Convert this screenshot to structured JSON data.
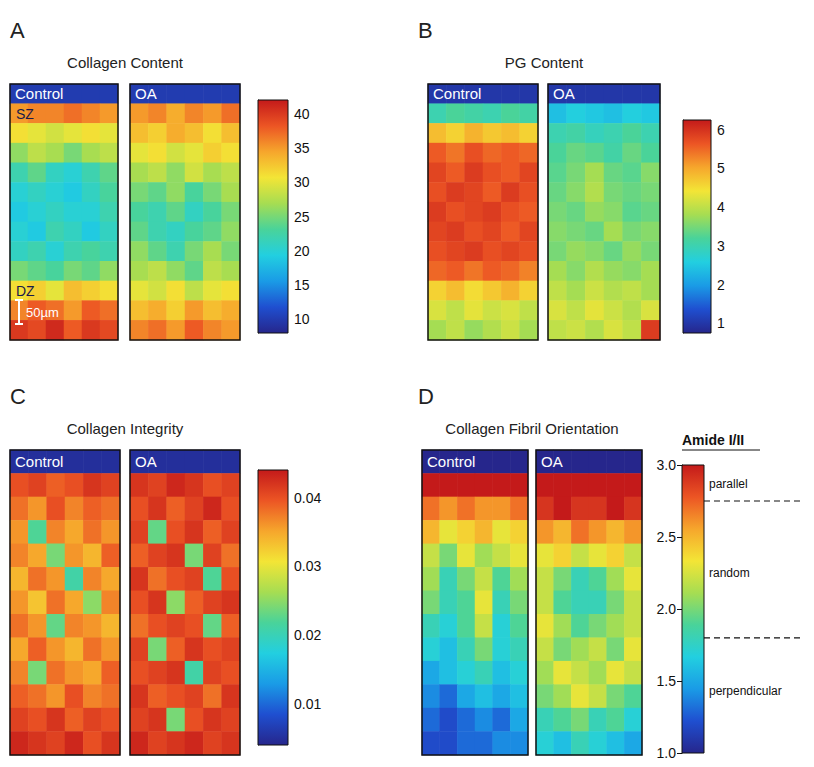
{
  "chart_data": [
    {
      "type": "heatmap",
      "panel": "A",
      "title": "Collagen Content",
      "colorbar": {
        "range": [
          8,
          42
        ],
        "ticks": [
          40,
          35,
          30,
          25,
          20,
          15,
          10
        ]
      },
      "images": [
        {
          "label": "Control",
          "annotations": [
            {
              "text": "SZ",
              "row": 1
            },
            {
              "text": "DZ",
              "row": 10
            }
          ],
          "scale_bar": "50µm",
          "cells": [
            [
              10,
              10,
              10,
              10,
              10,
              10
            ],
            [
              35,
              36,
              36,
              37,
              36,
              35
            ],
            [
              31,
              30,
              29,
              30,
              31,
              30
            ],
            [
              26,
              28,
              27,
              25,
              27,
              28
            ],
            [
              22,
              24,
              21,
              20,
              22,
              24
            ],
            [
              20,
              21,
              20,
              19,
              21,
              23
            ],
            [
              19,
              20,
              21,
              20,
              20,
              22
            ],
            [
              20,
              19,
              22,
              21,
              19,
              21
            ],
            [
              21,
              22,
              20,
              22,
              23,
              22
            ],
            [
              25,
              24,
              23,
              25,
              24,
              26
            ],
            [
              31,
              32,
              30,
              33,
              32,
              31
            ],
            [
              36,
              38,
              37,
              35,
              38,
              37
            ],
            [
              40,
              39,
              41,
              38,
              40,
              39
            ]
          ]
        },
        {
          "label": "OA",
          "cells": [
            [
              10,
              10,
              10,
              10,
              10,
              10
            ],
            [
              35,
              36,
              34,
              36,
              35,
              37
            ],
            [
              33,
              32,
              34,
              33,
              31,
              33
            ],
            [
              30,
              31,
              29,
              30,
              32,
              31
            ],
            [
              27,
              28,
              26,
              29,
              27,
              28
            ],
            [
              25,
              24,
              26,
              23,
              25,
              27
            ],
            [
              23,
              22,
              24,
              21,
              23,
              25
            ],
            [
              24,
              22,
              21,
              23,
              24,
              26
            ],
            [
              26,
              24,
              22,
              25,
              27,
              25
            ],
            [
              27,
              28,
              26,
              24,
              28,
              27
            ],
            [
              30,
              29,
              31,
              28,
              30,
              31
            ],
            [
              33,
              34,
              32,
              35,
              33,
              34
            ],
            [
              36,
              37,
              35,
              38,
              36,
              35
            ]
          ]
        }
      ]
    },
    {
      "type": "heatmap",
      "panel": "B",
      "title": "PG Content",
      "colorbar": {
        "range": [
          0.75,
          6.25
        ],
        "ticks": [
          6,
          5,
          4,
          3,
          2,
          1
        ]
      },
      "images": [
        {
          "label": "Control",
          "cells": [
            [
              1,
              1,
              1,
              1,
              1,
              1
            ],
            [
              3.0,
              3.2,
              3.1,
              3.0,
              3.2,
              3.1
            ],
            [
              4.8,
              4.6,
              4.9,
              4.7,
              4.8,
              4.6
            ],
            [
              5.6,
              5.4,
              5.7,
              5.5,
              5.6,
              5.5
            ],
            [
              5.8,
              5.6,
              5.9,
              5.7,
              5.6,
              5.8
            ],
            [
              5.7,
              5.9,
              5.8,
              5.6,
              5.9,
              5.7
            ],
            [
              5.9,
              5.7,
              5.8,
              5.9,
              5.7,
              5.6
            ],
            [
              5.8,
              5.9,
              5.7,
              5.8,
              5.6,
              5.8
            ],
            [
              5.7,
              5.8,
              5.9,
              5.7,
              5.8,
              5.7
            ],
            [
              5.5,
              5.6,
              5.4,
              5.6,
              5.5,
              5.3
            ],
            [
              4.6,
              4.8,
              4.5,
              4.7,
              4.9,
              4.6
            ],
            [
              4.2,
              4.0,
              4.3,
              4.1,
              4.2,
              4.0
            ],
            [
              3.8,
              4.0,
              3.7,
              3.9,
              4.1,
              3.8
            ]
          ]
        },
        {
          "label": "OA",
          "cells": [
            [
              1,
              1,
              1,
              1,
              1,
              1
            ],
            [
              2.4,
              2.6,
              2.5,
              2.4,
              2.6,
              2.5
            ],
            [
              3.0,
              3.1,
              2.9,
              3.0,
              3.2,
              3.0
            ],
            [
              3.2,
              3.4,
              3.3,
              3.1,
              3.4,
              3.2
            ],
            [
              3.3,
              3.5,
              3.8,
              3.4,
              3.3,
              3.6
            ],
            [
              3.4,
              3.6,
              3.9,
              3.5,
              3.4,
              3.5
            ],
            [
              3.5,
              3.4,
              3.7,
              3.6,
              3.3,
              3.4
            ],
            [
              3.6,
              3.5,
              3.4,
              3.8,
              3.5,
              3.6
            ],
            [
              3.5,
              3.7,
              3.6,
              3.4,
              3.7,
              3.5
            ],
            [
              3.8,
              3.6,
              3.9,
              3.7,
              3.6,
              3.8
            ],
            [
              4.0,
              3.8,
              4.1,
              3.9,
              4.0,
              3.8
            ],
            [
              4.2,
              4.0,
              4.3,
              4.1,
              3.9,
              4.2
            ],
            [
              4.0,
              4.1,
              3.9,
              4.2,
              4.0,
              5.9
            ]
          ]
        }
      ]
    },
    {
      "type": "heatmap",
      "panel": "C",
      "title": "Collagen Integrity",
      "colorbar": {
        "range": [
          0.004,
          0.044
        ],
        "ticks": [
          0.04,
          0.03,
          0.02,
          0.01
        ]
      },
      "images": [
        {
          "label": "Control",
          "cells": [
            [
              0.005,
              0.005,
              0.005,
              0.005,
              0.005,
              0.005
            ],
            [
              0.04,
              0.041,
              0.039,
              0.04,
              0.042,
              0.041
            ],
            [
              0.038,
              0.036,
              0.04,
              0.037,
              0.039,
              0.038
            ],
            [
              0.036,
              0.022,
              0.037,
              0.035,
              0.038,
              0.036
            ],
            [
              0.037,
              0.035,
              0.024,
              0.036,
              0.034,
              0.039
            ],
            [
              0.034,
              0.038,
              0.036,
              0.021,
              0.037,
              0.035
            ],
            [
              0.036,
              0.033,
              0.038,
              0.035,
              0.025,
              0.037
            ],
            [
              0.038,
              0.036,
              0.023,
              0.037,
              0.036,
              0.034
            ],
            [
              0.035,
              0.039,
              0.036,
              0.034,
              0.038,
              0.036
            ],
            [
              0.037,
              0.024,
              0.038,
              0.036,
              0.035,
              0.039
            ],
            [
              0.039,
              0.038,
              0.036,
              0.04,
              0.037,
              0.038
            ],
            [
              0.041,
              0.04,
              0.042,
              0.039,
              0.041,
              0.04
            ],
            [
              0.043,
              0.042,
              0.041,
              0.043,
              0.04,
              0.042
            ]
          ]
        },
        {
          "label": "OA",
          "cells": [
            [
              0.005,
              0.005,
              0.005,
              0.005,
              0.005,
              0.005
            ],
            [
              0.042,
              0.041,
              0.043,
              0.042,
              0.04,
              0.041
            ],
            [
              0.04,
              0.042,
              0.039,
              0.041,
              0.043,
              0.04
            ],
            [
              0.041,
              0.023,
              0.04,
              0.042,
              0.039,
              0.041
            ],
            [
              0.039,
              0.041,
              0.042,
              0.024,
              0.041,
              0.038
            ],
            [
              0.042,
              0.038,
              0.04,
              0.041,
              0.022,
              0.04
            ],
            [
              0.04,
              0.042,
              0.025,
              0.039,
              0.041,
              0.042
            ],
            [
              0.038,
              0.04,
              0.041,
              0.04,
              0.023,
              0.039
            ],
            [
              0.041,
              0.024,
              0.039,
              0.042,
              0.04,
              0.041
            ],
            [
              0.04,
              0.041,
              0.042,
              0.021,
              0.041,
              0.04
            ],
            [
              0.042,
              0.039,
              0.04,
              0.041,
              0.038,
              0.042
            ],
            [
              0.041,
              0.042,
              0.024,
              0.04,
              0.042,
              0.041
            ],
            [
              0.043,
              0.041,
              0.042,
              0.043,
              0.041,
              0.042
            ]
          ]
        }
      ]
    },
    {
      "type": "heatmap",
      "panel": "D",
      "title": "Collagen Fibril Orientation",
      "colorbar": {
        "title": "Amide I/II",
        "range": [
          1,
          3
        ],
        "ticks": [
          {
            "value": 3,
            "label": "3.0"
          },
          {
            "value": 2.5,
            "label": "2.5"
          },
          {
            "value": 2,
            "label": "2.0"
          },
          {
            "value": 1.5,
            "label": "1.5"
          },
          {
            "value": 1,
            "label": "1.0"
          }
        ],
        "dividers": [
          2.75,
          1.8
        ],
        "regions": [
          {
            "label": "parallel",
            "value": 2.87
          },
          {
            "label": "random",
            "value": 2.25
          },
          {
            "label": "perpendicular",
            "value": 1.43
          }
        ]
      },
      "images": [
        {
          "label": "Control",
          "cells": [
            [
              1,
              1,
              1,
              1,
              1,
              1
            ],
            [
              3.0,
              3.0,
              3.0,
              3.0,
              3.0,
              3.0
            ],
            [
              2.7,
              2.6,
              2.7,
              2.6,
              2.6,
              2.7
            ],
            [
              2.5,
              2.3,
              2.4,
              2.5,
              2.3,
              2.4
            ],
            [
              2.2,
              2.0,
              2.3,
              2.1,
              2.2,
              2.3
            ],
            [
              2.1,
              1.8,
              2.0,
              2.2,
              1.9,
              2.1
            ],
            [
              2.0,
              1.8,
              1.9,
              2.3,
              1.8,
              2.0
            ],
            [
              1.8,
              1.7,
              1.9,
              2.2,
              1.7,
              1.9
            ],
            [
              1.7,
              1.6,
              1.8,
              2.0,
              1.7,
              1.8
            ],
            [
              1.5,
              1.6,
              1.7,
              1.8,
              1.6,
              1.7
            ],
            [
              1.4,
              1.3,
              1.5,
              1.6,
              1.5,
              1.6
            ],
            [
              1.3,
              1.2,
              1.3,
              1.4,
              1.3,
              1.5
            ],
            [
              1.2,
              1.2,
              1.3,
              1.3,
              1.4,
              1.4
            ]
          ]
        },
        {
          "label": "OA",
          "cells": [
            [
              1,
              1,
              1,
              1,
              1,
              1
            ],
            [
              3.0,
              3.0,
              3.0,
              3.0,
              3.0,
              3.0
            ],
            [
              2.9,
              3.0,
              2.9,
              2.9,
              3.0,
              2.9
            ],
            [
              2.6,
              2.5,
              2.7,
              2.6,
              2.5,
              2.6
            ],
            [
              2.3,
              2.4,
              2.2,
              2.3,
              2.4,
              2.2
            ],
            [
              2.2,
              2.0,
              1.8,
              1.9,
              2.1,
              2.3
            ],
            [
              2.2,
              1.9,
              1.8,
              1.8,
              2.0,
              2.2
            ],
            [
              2.3,
              2.1,
              1.9,
              2.0,
              2.1,
              2.2
            ],
            [
              2.2,
              2.0,
              2.1,
              2.2,
              2.0,
              2.3
            ],
            [
              2.1,
              2.3,
              2.2,
              2.1,
              2.3,
              2.2
            ],
            [
              2.0,
              2.1,
              2.3,
              2.2,
              2.0,
              1.9
            ],
            [
              1.8,
              1.9,
              2.0,
              1.8,
              1.9,
              1.7
            ],
            [
              1.7,
              1.6,
              1.8,
              1.7,
              1.6,
              1.5
            ]
          ]
        }
      ]
    }
  ]
}
